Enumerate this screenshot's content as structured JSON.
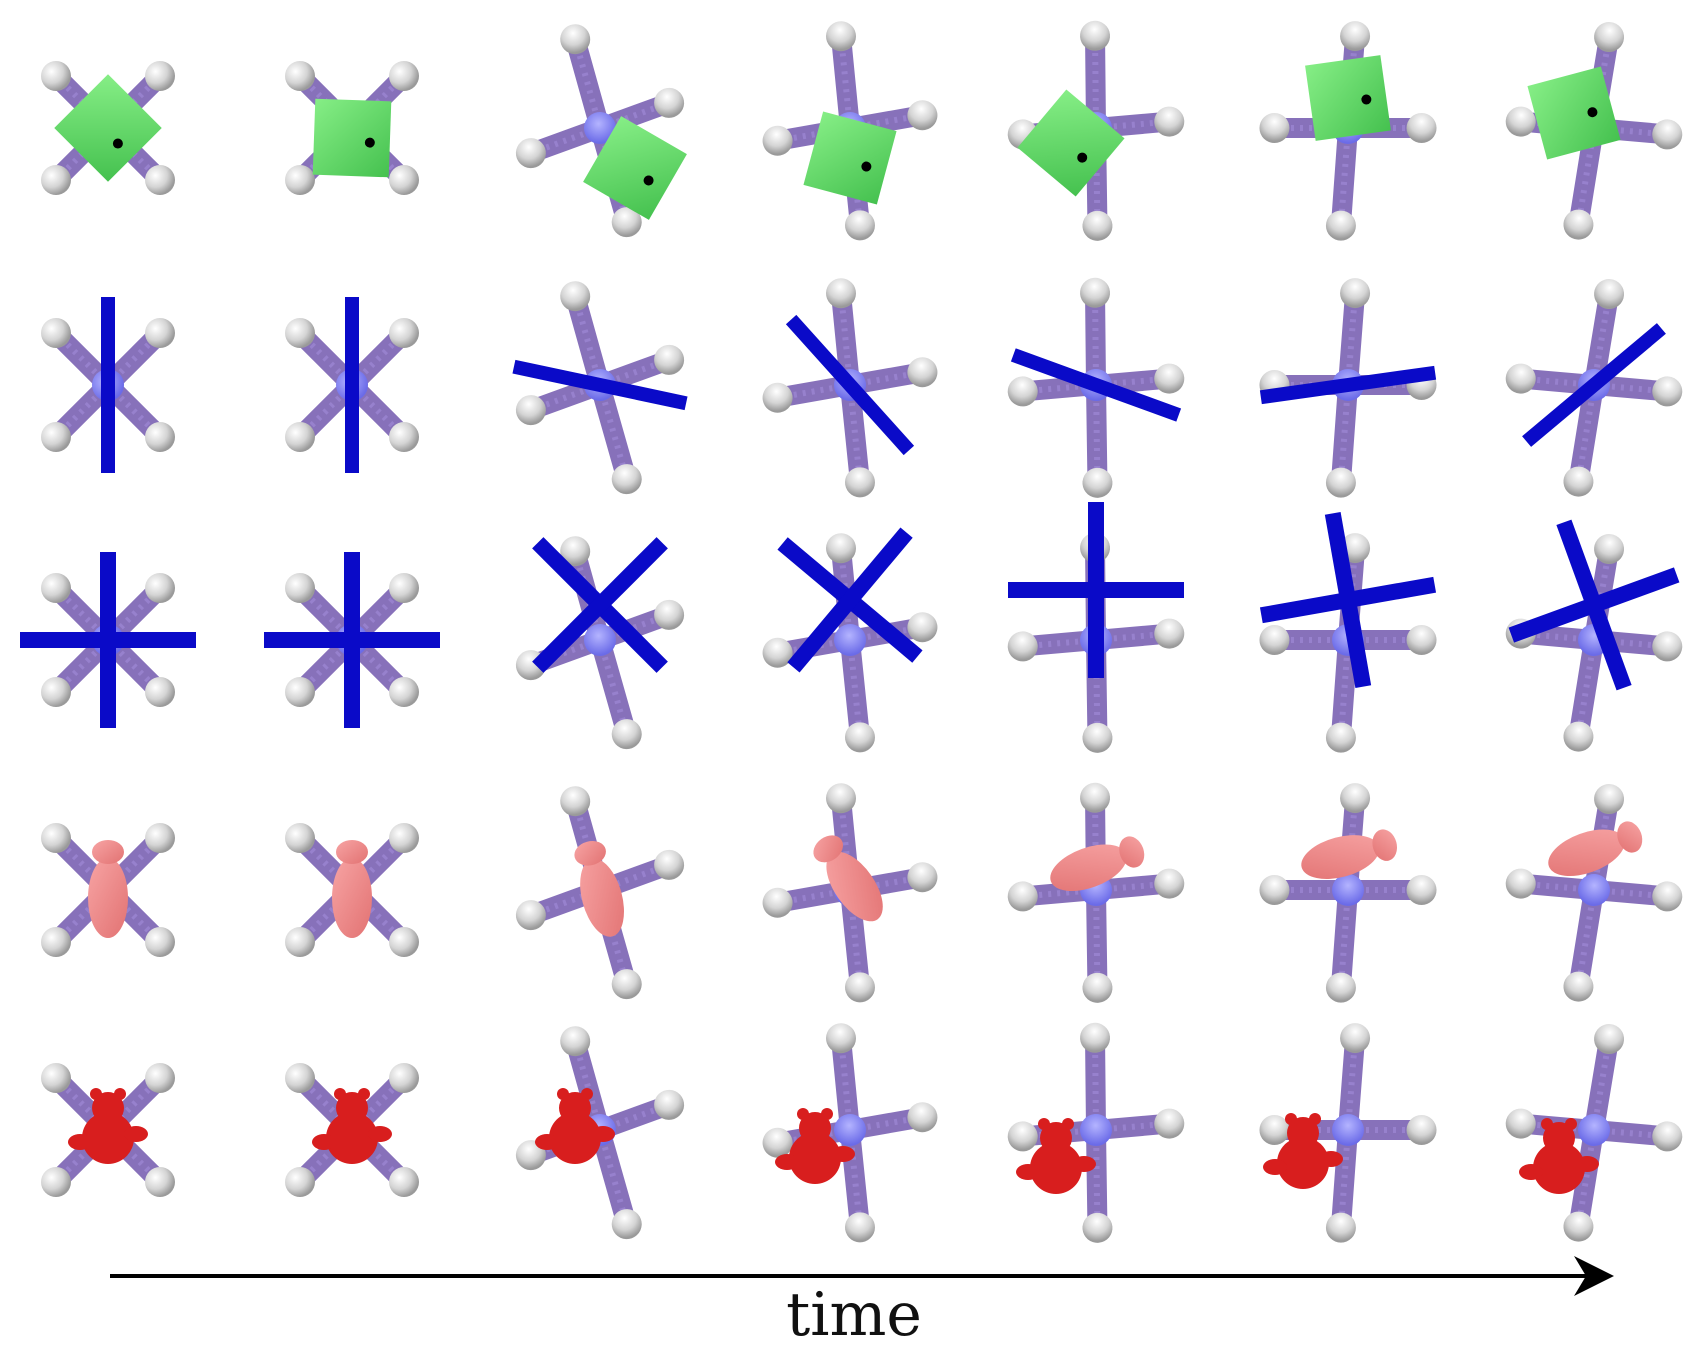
{
  "figure": {
    "time_label": "time",
    "rows": [
      {
        "object": "cube",
        "color": "#5fd66a",
        "frames": 7
      },
      {
        "object": "rod",
        "color": "#0a0ac8",
        "frames": 7
      },
      {
        "object": "cross",
        "color": "#0a0ac8",
        "frames": 7
      },
      {
        "object": "bunny",
        "color": "#ef8a8a",
        "frames": 7
      },
      {
        "object": "teddy",
        "color": "#d81e1e",
        "frames": 7
      }
    ],
    "colors": {
      "finger": "#7b62b3",
      "fingertip": "#d8d8d8",
      "palm": "#8c8cf0",
      "arrow": "#000000"
    }
  }
}
